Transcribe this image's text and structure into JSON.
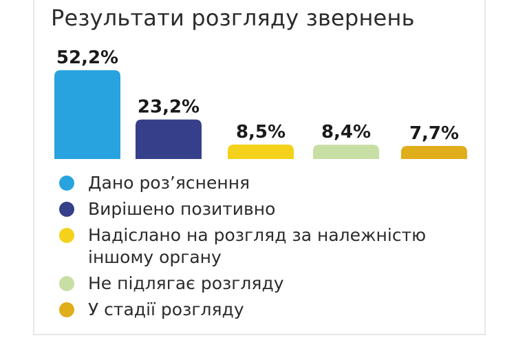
{
  "title": "Результати розгляду звернень",
  "chart_data": {
    "type": "bar",
    "title": "Результати розгляду звернень",
    "categories": [
      "Дано роз’яснення",
      "Вирішено позитивно",
      "Надіслано на розгляд за належністю іншому органу",
      "Не підлягає розгляду",
      "У стадії розгляду"
    ],
    "values": [
      52.2,
      23.2,
      8.5,
      8.4,
      7.7
    ],
    "value_labels": [
      "52,2%",
      "23,2%",
      "8,5%",
      "8,4%",
      "7,7%"
    ],
    "colors": [
      "#29a3e0",
      "#353f8a",
      "#f4d11a",
      "#c7dfa4",
      "#e0ad1b"
    ],
    "ylim": [
      0,
      52.2
    ],
    "grid": false,
    "legend_position": "bottom"
  },
  "legend": [
    {
      "label": "Дано роз’яснення",
      "color": "#29a3e0"
    },
    {
      "label": "Вирішено позитивно",
      "color": "#353f8a"
    },
    {
      "label": "Надіслано на розгляд за належністю іншому органу",
      "color": "#f4d11a"
    },
    {
      "label": "Не підлягає розгляду",
      "color": "#c7dfa4"
    },
    {
      "label": "У стадії розгляду",
      "color": "#e0ad1b"
    }
  ]
}
